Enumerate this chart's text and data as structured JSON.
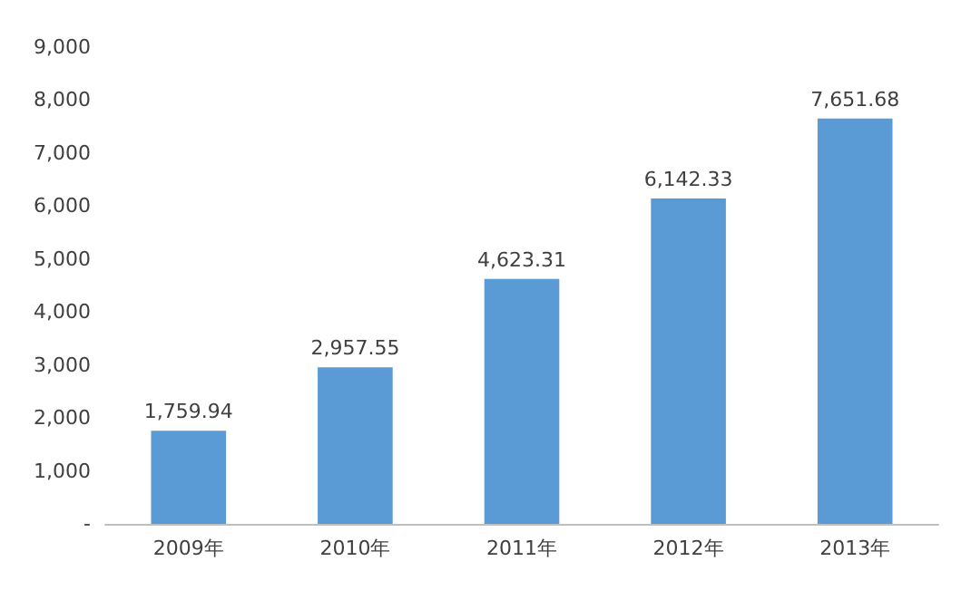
{
  "chart_data": {
    "type": "bar",
    "categories": [
      "2009年",
      "2010年",
      "2011年",
      "2012年",
      "2013年"
    ],
    "values": [
      1759.94,
      2957.55,
      4623.31,
      6142.33,
      7651.68
    ],
    "value_labels": [
      "1,759.94",
      "2,957.55",
      "4,623.31",
      "6,142.33",
      "7,651.68"
    ],
    "color": "#5b9bd5",
    "ylim": [
      0,
      9000
    ],
    "yticks": [
      {
        "value": 0,
        "label": "-"
      },
      {
        "value": 1000,
        "label": "1,000"
      },
      {
        "value": 2000,
        "label": "2,000"
      },
      {
        "value": 3000,
        "label": "3,000"
      },
      {
        "value": 4000,
        "label": "4,000"
      },
      {
        "value": 5000,
        "label": "5,000"
      },
      {
        "value": 6000,
        "label": "6,000"
      },
      {
        "value": 7000,
        "label": "7,000"
      },
      {
        "value": 8000,
        "label": "8,000"
      },
      {
        "value": 9000,
        "label": "9,000"
      }
    ],
    "grid": false
  }
}
